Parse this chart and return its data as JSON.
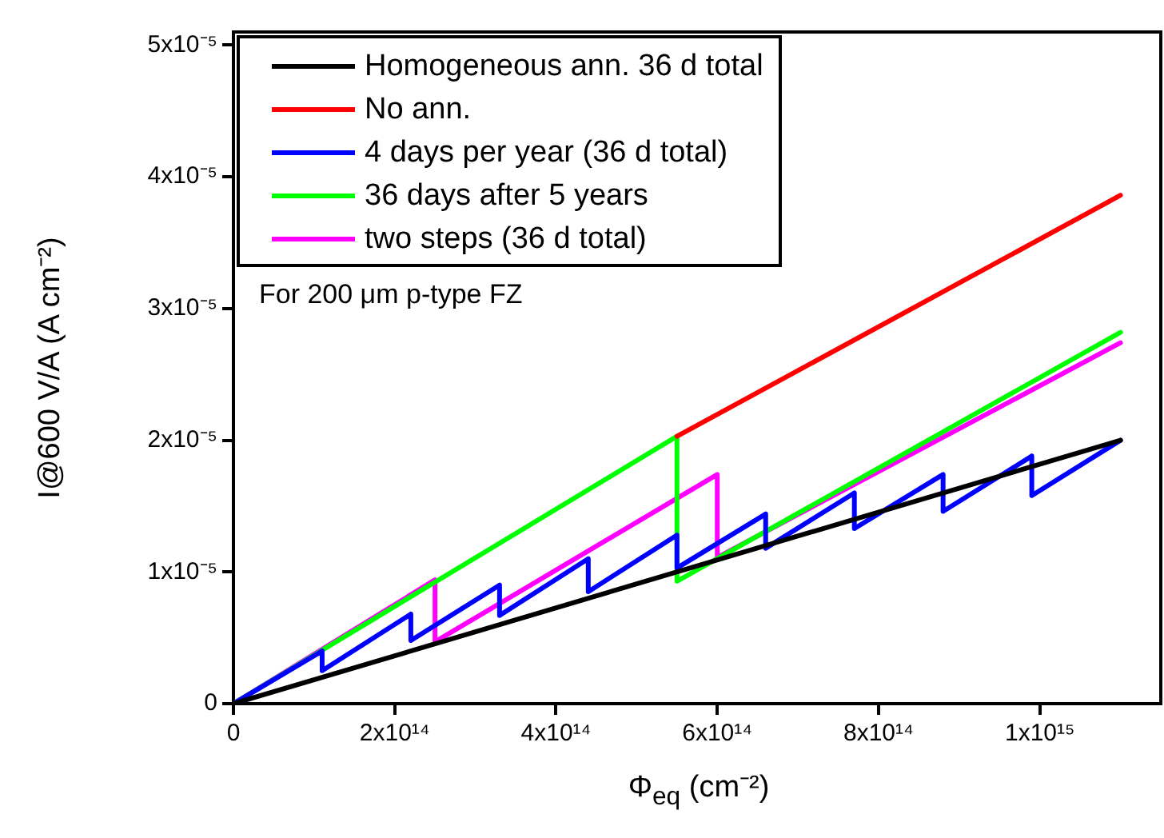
{
  "chart_data": {
    "type": "line",
    "xlabel": "Φ$_{eq}$ (cm⁻²)",
    "ylabel": "I@600 V/A (A cm⁻²)",
    "xlim": [
      0,
      1150000000000000.0
    ],
    "ylim": [
      0,
      5.1e-05
    ],
    "xticks": [
      0,
      {
        "value": 200000000000000.0,
        "label": "2x10¹⁴"
      },
      {
        "value": 400000000000000.0,
        "label": "4x10¹⁴"
      },
      {
        "value": 600000000000000.0,
        "label": "6x10¹⁴"
      },
      {
        "value": 800000000000000.0,
        "label": "8x10¹⁴"
      },
      {
        "value": 1000000000000000.0,
        "label": "1x10¹⁵"
      }
    ],
    "yticks": [
      0,
      {
        "value": 1e-05,
        "label": "1x10⁻⁵"
      },
      {
        "value": 2e-05,
        "label": "2x10⁻⁵"
      },
      {
        "value": 3e-05,
        "label": "3x10⁻⁵"
      },
      {
        "value": 4e-05,
        "label": "4x10⁻⁵"
      },
      {
        "value": 5e-05,
        "label": "5x10⁻⁵"
      }
    ],
    "grid": false,
    "legend": "top left",
    "marker": "none",
    "line_style": "solid",
    "annotations": [
      "For 200 μm p-type FZ"
    ],
    "series": [
      {
        "name": "Homogeneous ann. 36 d total",
        "color": "#000000",
        "x": [
          0,
          1100000000000000.0
        ],
        "values": [
          0,
          2e-05
        ]
      },
      {
        "name": "No ann.",
        "color": "#ff0000",
        "x": [
          550000000000000.0,
          1100000000000000.0
        ],
        "values": [
          2.03e-05,
          3.86e-05
        ]
      },
      {
        "name": "4 days per year (36 d total)",
        "color": "#0000ff",
        "x": [
          0,
          110000000000000.0,
          110000000000000.0,
          220000000000000.0,
          220000000000000.0,
          330000000000000.0,
          330000000000000.0,
          440000000000000.0,
          440000000000000.0,
          550000000000000.0,
          550000000000000.0,
          660000000000000.0,
          660000000000000.0,
          770000000000000.0,
          770000000000000.0,
          880000000000000.0,
          880000000000000.0,
          990000000000000.0,
          990000000000000.0,
          1100000000000000.0
        ],
        "values": [
          0,
          4e-06,
          2.5e-06,
          6.8e-06,
          4.8e-06,
          9e-06,
          6.7e-06,
          1.1e-05,
          8.5e-06,
          1.28e-05,
          1.03e-05,
          1.44e-05,
          1.18e-05,
          1.6e-05,
          1.33e-05,
          1.74e-05,
          1.46e-05,
          1.88e-05,
          1.58e-05,
          2e-05
        ]
      },
      {
        "name": "36 days after 5 years",
        "color": "#00ff00",
        "x": [
          0,
          550000000000000.0,
          550000000000000.0,
          1100000000000000.0
        ],
        "values": [
          0,
          2.03e-05,
          9.3e-06,
          2.82e-05
        ]
      },
      {
        "name": "two steps (36 d total)",
        "color": "#ff00ff",
        "x": [
          0,
          250000000000000.0,
          250000000000000.0,
          600000000000000.0,
          600000000000000.0,
          1100000000000000.0
        ],
        "values": [
          0,
          9.4e-06,
          4.7e-06,
          1.74e-05,
          1.11e-05,
          2.74e-05
        ]
      }
    ]
  }
}
